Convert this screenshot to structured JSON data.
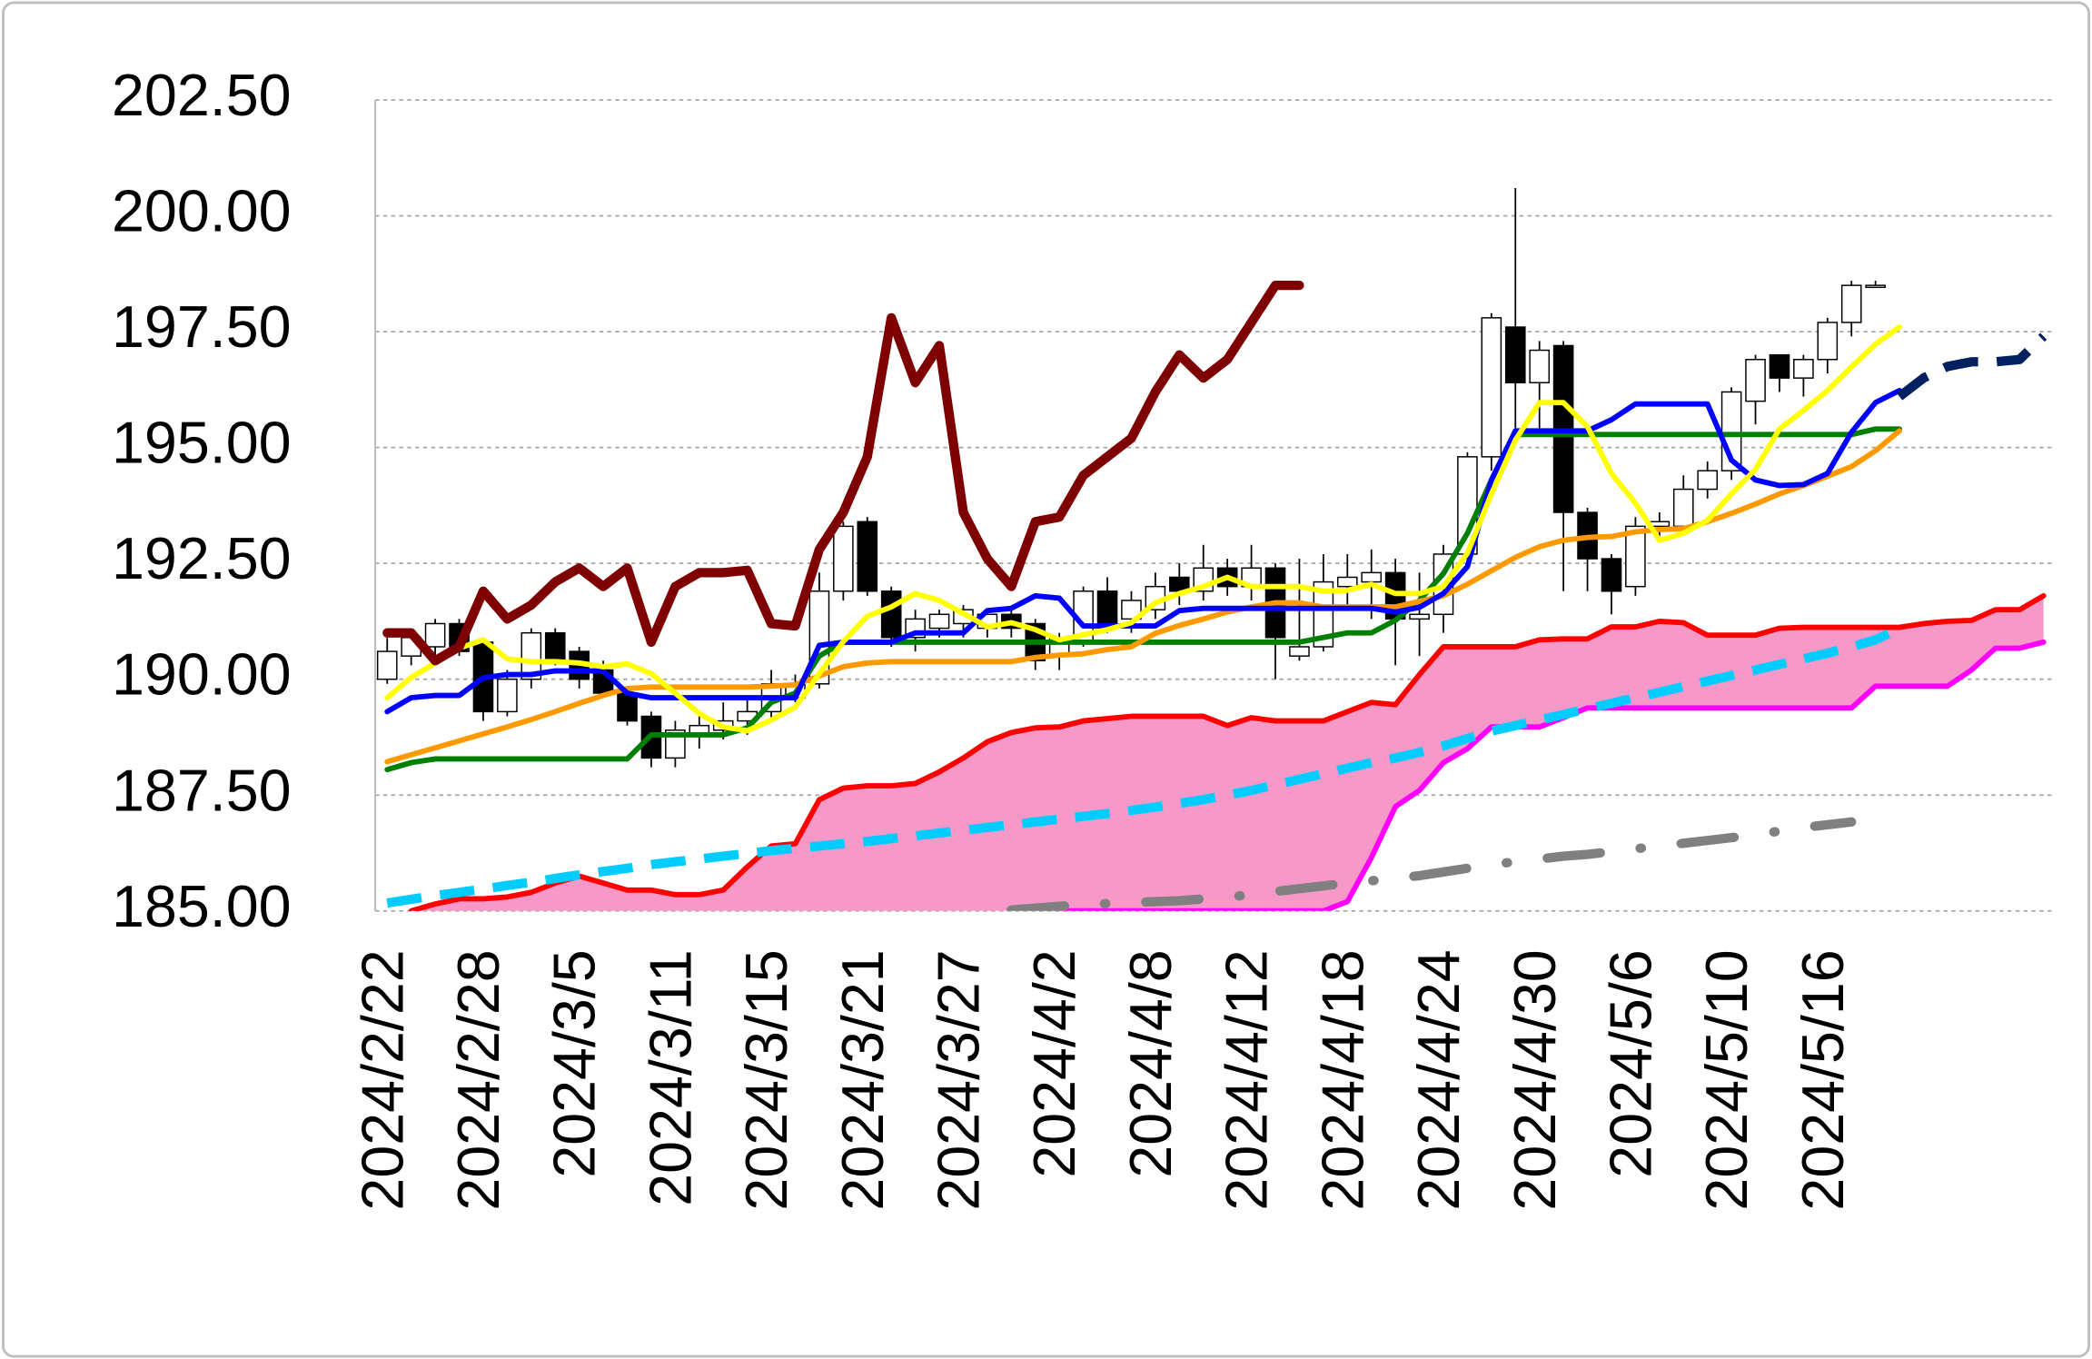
{
  "chart_data": {
    "type": "candlestick",
    "ylim": [
      185,
      202.5
    ],
    "yticks": [
      {
        "value": 185,
        "label": "185.00"
      },
      {
        "value": 187.5,
        "label": "187.50"
      },
      {
        "value": 190,
        "label": "190.00"
      },
      {
        "value": 192.5,
        "label": "192.50"
      },
      {
        "value": 195,
        "label": "195.00"
      },
      {
        "value": 197.5,
        "label": "197.50"
      },
      {
        "value": 200,
        "label": "200.00"
      },
      {
        "value": 202.5,
        "label": "202.50"
      }
    ],
    "grid": true,
    "categories": [
      "2024/2/22",
      null,
      null,
      null,
      "2024/2/28",
      null,
      null,
      null,
      "2024/3/5",
      null,
      null,
      null,
      "2024/3/11",
      null,
      null,
      null,
      "2024/3/15",
      null,
      null,
      null,
      "2024/3/21",
      null,
      null,
      null,
      "2024/3/27",
      null,
      null,
      null,
      "2024/4/2",
      null,
      null,
      null,
      "2024/4/8",
      null,
      null,
      null,
      "2024/4/12",
      null,
      null,
      null,
      "2024/4/18",
      null,
      null,
      null,
      "2024/4/24",
      null,
      null,
      null,
      "2024/4/30",
      null,
      null,
      null,
      "2024/5/6",
      null,
      null,
      null,
      "2024/5/10",
      null,
      null,
      null,
      "2024/5/16",
      null,
      null,
      null,
      null,
      null,
      null,
      null,
      null,
      null
    ],
    "candles": {
      "up_color": "#ffffff",
      "down_color": "#000000",
      "open": [
        190.0,
        190.5,
        190.7,
        191.2,
        190.8,
        189.3,
        190.0,
        191.0,
        190.6,
        190.2,
        189.7,
        189.2,
        188.3,
        188.8,
        188.9,
        189.1,
        189.3,
        189.6,
        189.9,
        191.9,
        193.4,
        191.9,
        190.9,
        191.1,
        191.2,
        191.1,
        191.4,
        191.2,
        190.5,
        190.8,
        191.9,
        191.3,
        191.5,
        192.2,
        191.9,
        192.4,
        192.0,
        192.4,
        190.5,
        190.7,
        192.0,
        192.1,
        192.3,
        191.3,
        191.4,
        192.7,
        194.8,
        197.6,
        196.4,
        197.2,
        193.6,
        192.6,
        192.0,
        193.3,
        193.3,
        194.1,
        194.5,
        196.0,
        197.0,
        196.5,
        196.9,
        197.7,
        198.5,
        null,
        null,
        null,
        null,
        null,
        null,
        null
      ],
      "high": [
        190.9,
        191.0,
        191.3,
        191.3,
        190.9,
        190.2,
        191.1,
        191.1,
        190.7,
        190.4,
        189.8,
        189.3,
        189.1,
        189.3,
        189.5,
        189.6,
        190.2,
        190.1,
        192.3,
        193.4,
        193.5,
        192.0,
        191.5,
        191.5,
        191.6,
        191.5,
        191.5,
        191.3,
        191.0,
        192.0,
        192.2,
        191.9,
        192.3,
        192.5,
        192.9,
        192.6,
        192.9,
        192.5,
        192.6,
        192.7,
        192.7,
        192.8,
        192.6,
        192.3,
        192.9,
        194.9,
        197.9,
        200.6,
        197.3,
        197.3,
        193.7,
        192.7,
        193.5,
        193.6,
        194.4,
        194.7,
        196.3,
        197.0,
        197.0,
        197.0,
        197.8,
        198.6,
        198.6,
        null,
        null,
        null,
        null,
        null,
        null,
        null
      ],
      "low": [
        189.9,
        190.3,
        190.4,
        190.5,
        189.1,
        189.2,
        189.8,
        190.3,
        189.8,
        189.6,
        189.0,
        188.1,
        188.1,
        188.5,
        188.7,
        188.8,
        189.1,
        189.5,
        189.8,
        191.7,
        191.8,
        190.7,
        190.6,
        190.9,
        190.9,
        190.9,
        190.9,
        190.2,
        190.2,
        190.7,
        191.0,
        191.0,
        191.3,
        191.6,
        191.7,
        191.8,
        191.7,
        190.0,
        190.4,
        190.6,
        191.5,
        191.3,
        190.3,
        190.5,
        191.0,
        192.5,
        194.5,
        195.2,
        195.4,
        191.9,
        191.9,
        191.4,
        191.8,
        193.0,
        193.1,
        193.9,
        194.3,
        195.5,
        196.2,
        196.1,
        196.6,
        197.4,
        198.5,
        null,
        null,
        null,
        null,
        null,
        null,
        null
      ],
      "close": [
        190.6,
        190.9,
        191.2,
        190.6,
        189.3,
        190.0,
        191.0,
        190.4,
        190.0,
        189.7,
        189.1,
        188.3,
        188.9,
        189.0,
        189.1,
        189.3,
        189.9,
        189.9,
        191.9,
        193.3,
        191.9,
        190.9,
        191.3,
        191.4,
        191.5,
        191.4,
        191.1,
        190.4,
        190.9,
        191.9,
        191.2,
        191.7,
        192.0,
        191.9,
        192.4,
        192.0,
        192.4,
        190.9,
        190.7,
        192.1,
        192.2,
        192.3,
        191.3,
        191.4,
        192.7,
        194.8,
        197.8,
        196.4,
        197.1,
        193.6,
        192.6,
        191.9,
        193.3,
        193.4,
        194.1,
        194.5,
        196.2,
        196.9,
        196.5,
        196.9,
        197.7,
        198.5,
        198.5,
        null,
        null,
        null,
        null,
        null,
        null,
        null
      ]
    },
    "series": [
      {
        "color": "#ff0000",
        "fill": "#f799c8",
        "style": "solid",
        "weight": "normal",
        "values": [
          null,
          185.0,
          185.15,
          185.26,
          185.26,
          185.3,
          185.4,
          185.6,
          185.75,
          185.6,
          185.45,
          185.45,
          185.35,
          185.35,
          185.45,
          185.95,
          186.4,
          186.45,
          187.4,
          187.65,
          187.7,
          187.7,
          187.75,
          188.0,
          188.3,
          188.65,
          188.85,
          188.95,
          188.97,
          189.1,
          189.15,
          189.2,
          189.2,
          189.2,
          189.2,
          189.0,
          189.17,
          189.1,
          189.1,
          189.1,
          189.3,
          189.5,
          189.45,
          190.1,
          190.7,
          190.7,
          190.7,
          190.7,
          190.85,
          190.87,
          190.87,
          191.13,
          191.13,
          191.25,
          191.22,
          190.95,
          190.95,
          190.95,
          191.1,
          191.12,
          191.12,
          191.12,
          191.12,
          191.12,
          191.2,
          191.25,
          191.27,
          191.5,
          191.5,
          191.8
        ]
      },
      {
        "color": "#ff00ff",
        "style": "solid",
        "weight": "normal",
        "values": [
          null,
          null,
          null,
          null,
          null,
          null,
          null,
          null,
          null,
          null,
          null,
          null,
          null,
          null,
          null,
          null,
          null,
          null,
          null,
          null,
          null,
          null,
          null,
          null,
          null,
          null,
          null,
          null,
          185.0,
          185.0,
          185.0,
          185.0,
          185.0,
          185.0,
          185.0,
          185.0,
          185.0,
          185.0,
          185.0,
          185.0,
          185.2,
          186.15,
          187.25,
          187.6,
          188.2,
          188.5,
          188.97,
          188.97,
          188.97,
          189.17,
          189.38,
          189.38,
          189.38,
          189.38,
          189.38,
          189.38,
          189.38,
          189.38,
          189.38,
          189.38,
          189.38,
          189.38,
          189.85,
          189.85,
          189.85,
          189.85,
          190.2,
          190.67,
          190.67,
          190.8
        ]
      },
      {
        "color": "#00ccff",
        "style": "dashed",
        "weight": "heavy",
        "values": [
          185.17,
          185.25,
          185.33,
          185.4,
          185.47,
          185.55,
          185.62,
          185.7,
          185.78,
          185.85,
          185.92,
          186.0,
          186.06,
          186.12,
          186.18,
          186.24,
          186.3,
          186.35,
          186.4,
          186.45,
          186.5,
          186.56,
          186.62,
          186.68,
          186.74,
          186.8,
          186.86,
          186.92,
          186.98,
          187.04,
          187.1,
          187.17,
          187.24,
          187.32,
          187.4,
          187.5,
          187.6,
          187.72,
          187.84,
          187.96,
          188.08,
          188.2,
          188.3,
          188.42,
          188.56,
          188.72,
          188.88,
          189.0,
          189.12,
          189.24,
          189.36,
          189.48,
          189.6,
          189.72,
          189.84,
          189.96,
          190.08,
          190.2,
          190.32,
          190.44,
          190.56,
          190.7,
          190.85,
          191.1,
          null,
          null,
          null,
          null,
          null,
          null
        ]
      },
      {
        "color": "#808080",
        "style": "dashdot",
        "weight": "heavy",
        "values": [
          null,
          null,
          null,
          null,
          null,
          null,
          null,
          null,
          null,
          null,
          null,
          null,
          null,
          null,
          null,
          null,
          null,
          null,
          null,
          null,
          null,
          null,
          null,
          null,
          null,
          null,
          185.02,
          185.06,
          185.1,
          185.13,
          185.16,
          185.18,
          185.2,
          185.22,
          185.26,
          185.3,
          185.35,
          185.42,
          185.48,
          185.54,
          185.6,
          185.65,
          185.7,
          185.76,
          185.84,
          185.92,
          186.0,
          186.06,
          186.12,
          186.18,
          186.22,
          186.28,
          186.34,
          186.4,
          186.46,
          186.52,
          186.58,
          186.65,
          186.72,
          186.8,
          186.86,
          186.92,
          null,
          null,
          null,
          null,
          null,
          null,
          null,
          null
        ]
      },
      {
        "color": "#008000",
        "style": "solid",
        "weight": "normal",
        "values": [
          188.05,
          188.2,
          188.28,
          188.28,
          188.28,
          188.28,
          188.28,
          188.28,
          188.28,
          188.28,
          188.28,
          188.8,
          188.8,
          188.8,
          188.8,
          188.95,
          189.5,
          189.7,
          190.5,
          190.8,
          190.8,
          190.8,
          190.8,
          190.8,
          190.8,
          190.8,
          190.8,
          190.8,
          190.8,
          190.8,
          190.8,
          190.8,
          190.8,
          190.8,
          190.8,
          190.8,
          190.8,
          190.8,
          190.8,
          190.9,
          191.0,
          191.0,
          191.27,
          191.7,
          192.28,
          193.15,
          194.3,
          195.28,
          195.28,
          195.28,
          195.28,
          195.28,
          195.28,
          195.28,
          195.28,
          195.28,
          195.28,
          195.28,
          195.28,
          195.28,
          195.28,
          195.28,
          195.4,
          195.4,
          null,
          null,
          null,
          null,
          null,
          null
        ]
      },
      {
        "color": "#ff9900",
        "style": "solid",
        "weight": "normal",
        "values": [
          188.22,
          188.37,
          188.52,
          188.67,
          188.82,
          188.97,
          189.13,
          189.3,
          189.48,
          189.65,
          189.8,
          189.83,
          189.83,
          189.83,
          189.83,
          189.83,
          189.85,
          189.88,
          190.07,
          190.27,
          190.35,
          190.38,
          190.38,
          190.38,
          190.38,
          190.38,
          190.38,
          190.47,
          190.52,
          190.55,
          190.64,
          190.7,
          190.99,
          191.16,
          191.3,
          191.45,
          191.56,
          191.65,
          191.65,
          191.56,
          191.56,
          191.56,
          191.56,
          191.68,
          191.8,
          192.05,
          192.34,
          192.63,
          192.86,
          193.0,
          193.06,
          193.08,
          193.18,
          193.23,
          193.25,
          193.4,
          193.58,
          193.78,
          194.0,
          194.18,
          194.38,
          194.59,
          194.93,
          195.36,
          null,
          null,
          null,
          null,
          null,
          null
        ]
      },
      {
        "color": "#0000ff",
        "style": "solid",
        "weight": "normal",
        "values": [
          189.3,
          189.6,
          189.65,
          189.65,
          190.03,
          190.1,
          190.1,
          190.18,
          190.18,
          190.18,
          189.7,
          189.6,
          189.6,
          189.6,
          189.6,
          189.6,
          189.6,
          189.6,
          190.73,
          190.8,
          190.8,
          190.8,
          191.0,
          191.0,
          191.0,
          191.48,
          191.53,
          191.8,
          191.75,
          191.15,
          191.15,
          191.15,
          191.15,
          191.48,
          191.53,
          191.53,
          191.53,
          191.53,
          191.53,
          191.53,
          191.53,
          191.53,
          191.45,
          191.55,
          191.85,
          192.43,
          194.3,
          195.36,
          195.36,
          195.36,
          195.36,
          195.6,
          195.94,
          195.94,
          195.94,
          195.94,
          194.73,
          194.3,
          194.18,
          194.2,
          194.44,
          195.33,
          195.97,
          196.23,
          null,
          null,
          null,
          null,
          null,
          null
        ]
      },
      {
        "color": "#ffff00",
        "style": "solid",
        "weight": "normal",
        "values": [
          189.6,
          190.04,
          190.35,
          190.67,
          190.85,
          190.44,
          190.38,
          190.38,
          190.35,
          190.27,
          190.33,
          190.12,
          189.7,
          189.26,
          188.97,
          188.89,
          189.12,
          189.4,
          190.12,
          190.81,
          191.36,
          191.56,
          191.85,
          191.7,
          191.42,
          191.13,
          191.22,
          191.07,
          190.85,
          190.96,
          191.07,
          191.22,
          191.65,
          191.85,
          192.0,
          192.2,
          192.0,
          192.0,
          192.0,
          191.9,
          191.92,
          192.05,
          191.85,
          191.85,
          192.0,
          192.72,
          194.0,
          195.16,
          195.97,
          195.97,
          195.45,
          194.44,
          193.8,
          193.0,
          193.15,
          193.43,
          194.0,
          194.53,
          195.4,
          195.8,
          196.23,
          196.74,
          197.23,
          197.6,
          null,
          null,
          null,
          null,
          null,
          null
        ]
      },
      {
        "color": "#002060",
        "style": "dashed",
        "weight": "heavy",
        "values": [
          null,
          null,
          null,
          null,
          null,
          null,
          null,
          null,
          null,
          null,
          null,
          null,
          null,
          null,
          null,
          null,
          null,
          null,
          null,
          null,
          null,
          null,
          null,
          null,
          null,
          null,
          null,
          null,
          null,
          null,
          null,
          null,
          null,
          null,
          null,
          null,
          null,
          null,
          null,
          null,
          null,
          null,
          null,
          null,
          null,
          null,
          null,
          null,
          null,
          null,
          null,
          null,
          null,
          null,
          null,
          null,
          null,
          null,
          null,
          null,
          null,
          null,
          null,
          196.1,
          196.5,
          196.75,
          196.85,
          196.85,
          196.9,
          197.4
        ]
      },
      {
        "color": "#7f0000",
        "style": "solid",
        "weight": "heavy",
        "values": [
          191.0,
          191.0,
          190.4,
          190.7,
          191.9,
          191.3,
          191.6,
          192.1,
          192.4,
          192.0,
          192.4,
          190.8,
          192.0,
          192.3,
          192.3,
          192.35,
          191.2,
          191.15,
          192.8,
          193.6,
          194.8,
          197.8,
          196.4,
          197.2,
          193.6,
          192.6,
          192.0,
          193.4,
          193.5,
          194.4,
          194.8,
          195.2,
          196.2,
          197.0,
          196.5,
          196.9,
          197.7,
          198.5,
          198.5,
          null,
          null,
          null,
          null,
          null,
          null,
          null,
          null,
          null,
          null,
          null,
          null,
          null,
          null,
          null,
          null,
          null,
          null,
          null,
          null,
          null,
          null,
          null,
          null,
          null,
          null,
          null,
          null,
          null,
          null,
          null
        ]
      }
    ]
  }
}
